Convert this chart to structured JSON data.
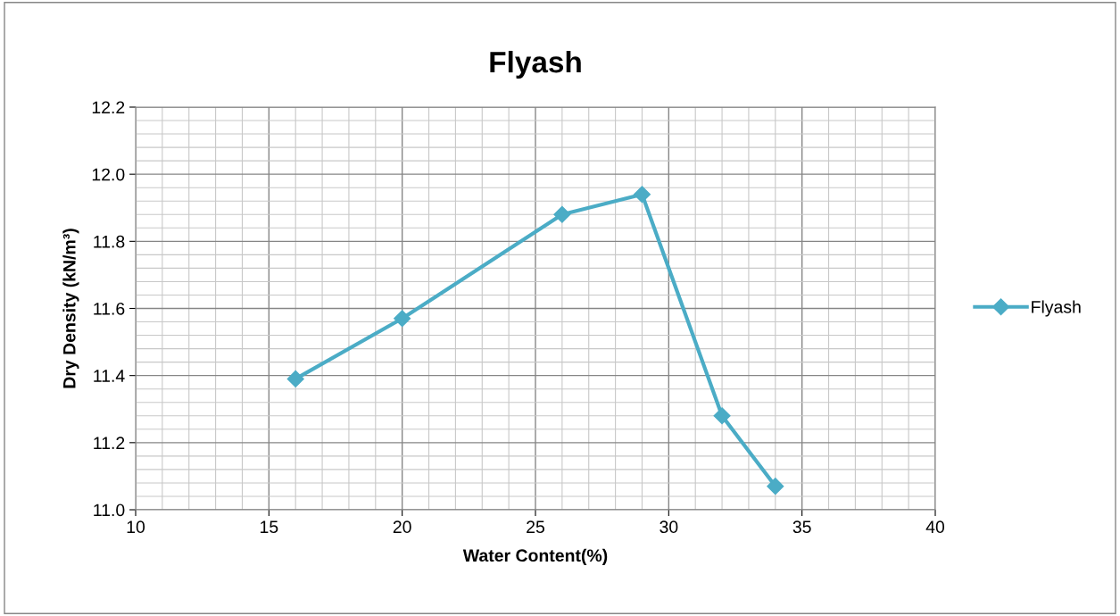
{
  "chart_data": {
    "type": "line",
    "title": "Flyash",
    "xlabel": "Water Content(%)",
    "ylabel": "Dry Density (kN/m³)",
    "x": [
      16,
      20,
      26,
      29,
      32,
      34
    ],
    "series": [
      {
        "name": "Flyash",
        "color": "#4bacc6",
        "values": [
          11.39,
          11.57,
          11.88,
          11.94,
          11.28,
          11.07
        ]
      }
    ],
    "xlim": [
      10,
      40
    ],
    "xticks": [
      10,
      15,
      20,
      25,
      30,
      35,
      40
    ],
    "ylim": [
      11.0,
      12.2
    ],
    "yticks": [
      {
        "value": 11.0,
        "label": "11.0"
      },
      {
        "value": 11.2,
        "label": "11.2"
      },
      {
        "value": 11.4,
        "label": "11.4"
      },
      {
        "value": 11.6,
        "label": "11.6"
      },
      {
        "value": 11.8,
        "label": "11.8"
      },
      {
        "value": 12.0,
        "label": "12.0"
      },
      {
        "value": 12.2,
        "label": "12.2"
      }
    ],
    "grid": true,
    "legend": "right",
    "marker": "diamond",
    "line_style": "solid"
  }
}
